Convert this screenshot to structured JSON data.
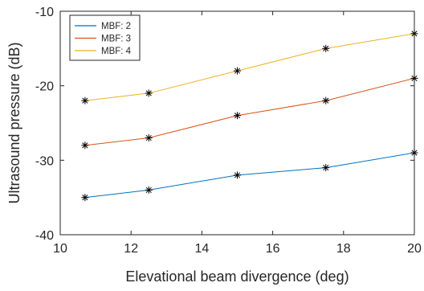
{
  "chart_data": {
    "type": "line",
    "xlabel": "Elevational beam divergence (deg)",
    "ylabel": "Ultrasound pressure (dB)",
    "xlim": [
      10,
      20
    ],
    "ylim": [
      -40,
      -10
    ],
    "xticks": [
      10,
      12,
      14,
      16,
      18,
      20
    ],
    "yticks": [
      -10,
      -20,
      -30,
      -40
    ],
    "grid": false,
    "legend_position": "top-left",
    "marker": "asterisk",
    "marker_color": "#000000",
    "x": [
      10.7,
      12.5,
      15,
      17.5,
      20
    ],
    "series": [
      {
        "name": "MBF: 2",
        "color": "#0072BD",
        "values": [
          -35,
          -34,
          -32,
          -31,
          -29
        ]
      },
      {
        "name": "MBF: 3",
        "color": "#D95319",
        "values": [
          -28,
          -27,
          -24,
          -22,
          -19
        ]
      },
      {
        "name": "MBF: 4",
        "color": "#EDB120",
        "values": [
          -22,
          -21,
          -18,
          -15,
          -13
        ]
      }
    ]
  }
}
